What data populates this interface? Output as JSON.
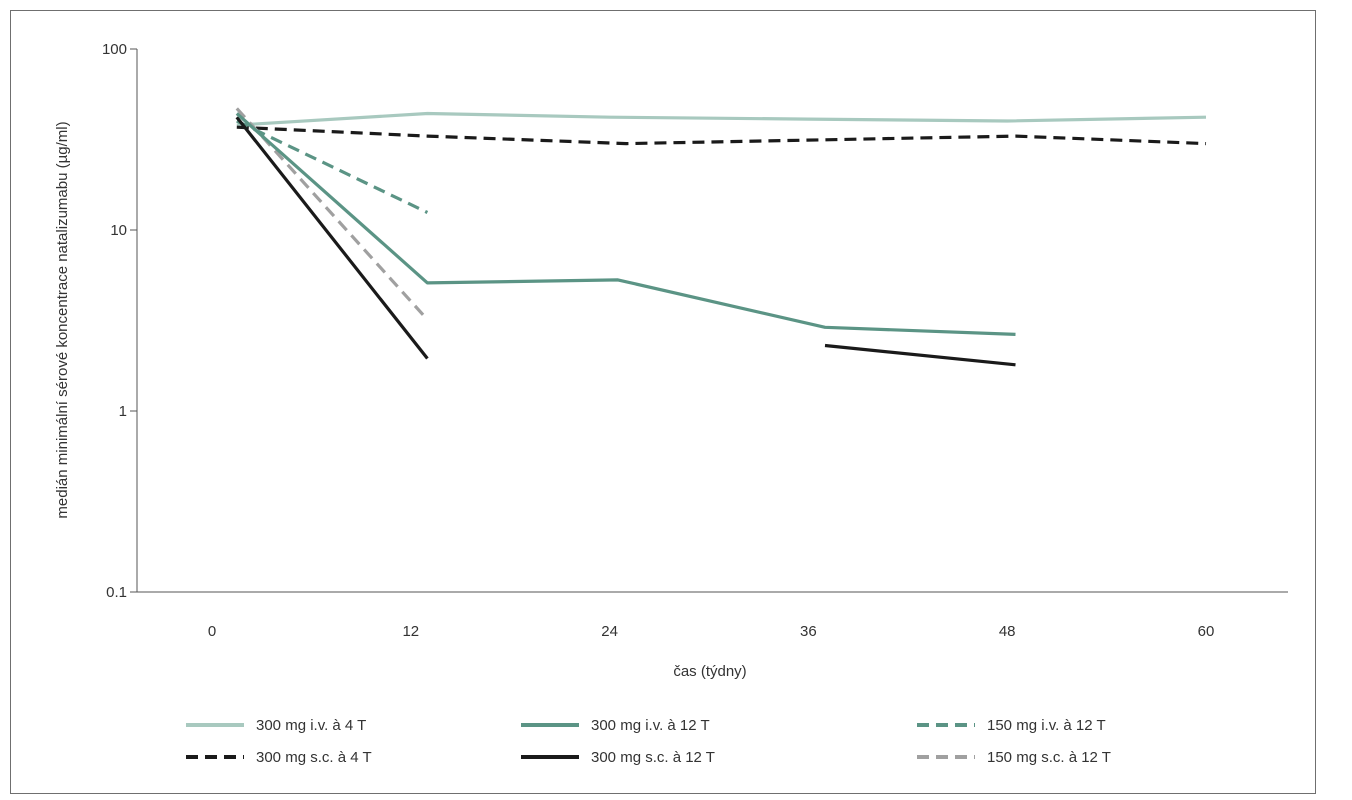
{
  "chart_data": {
    "type": "line",
    "title": "",
    "xlabel": "čas (týdny)",
    "ylabel": "medián minimální sérové koncentrace natalizumabu (µg/ml)",
    "x_ticks": [
      0,
      12,
      24,
      36,
      48,
      60
    ],
    "x_tick_labels": [
      "0",
      "12",
      "24",
      "36",
      "48",
      "60"
    ],
    "xlim": [
      -4,
      65
    ],
    "y_scale": "log",
    "y_ticks": [
      0.1,
      1,
      10,
      100
    ],
    "y_tick_labels": [
      "0.1",
      "1",
      "10",
      "100"
    ],
    "ylim": [
      0.1,
      100
    ],
    "grid": false,
    "legend_position": "bottom",
    "series": [
      {
        "name": "300 mg i.v. à 4 T",
        "color": "#a8c9bf",
        "dash": "solid",
        "segments": [
          [
            [
              1.5,
              38
            ],
            [
              13,
              44
            ],
            [
              24,
              42
            ],
            [
              36,
              41
            ],
            [
              48,
              40
            ],
            [
              60,
              42
            ]
          ]
        ]
      },
      {
        "name": "300 mg i.v. à 12 T",
        "color": "#5b9485",
        "dash": "solid",
        "segments": [
          [
            [
              1.5,
              44
            ],
            [
              13,
              5.1
            ],
            [
              24.5,
              5.3
            ],
            [
              37,
              2.9
            ],
            [
              48.5,
              2.65
            ]
          ]
        ]
      },
      {
        "name": "150 mg i.v. à 12 T",
        "color": "#5b9485",
        "dash": "dashed",
        "segments": [
          [
            [
              1.5,
              40
            ],
            [
              13,
              12.5
            ]
          ]
        ]
      },
      {
        "name": "300 mg s.c. à 4 T",
        "color": "#1a1a1a",
        "dash": "dashed",
        "segments": [
          [
            [
              1.5,
              37
            ],
            [
              13,
              33
            ],
            [
              25,
              30
            ],
            [
              37,
              31.5
            ],
            [
              48.5,
              33
            ],
            [
              60,
              30
            ]
          ]
        ]
      },
      {
        "name": "300 mg s.c. à 12 T",
        "color": "#1a1a1a",
        "dash": "solid",
        "segments": [
          [
            [
              1.5,
              42
            ],
            [
              13,
              1.95
            ]
          ],
          [
            [
              37,
              2.3
            ],
            [
              48.5,
              1.8
            ]
          ]
        ]
      },
      {
        "name": "150 mg s.c. à 12 T",
        "color": "#a0a0a0",
        "dash": "dashed",
        "segments": [
          [
            [
              1.5,
              47
            ],
            [
              13,
              3.2
            ]
          ]
        ]
      }
    ]
  }
}
